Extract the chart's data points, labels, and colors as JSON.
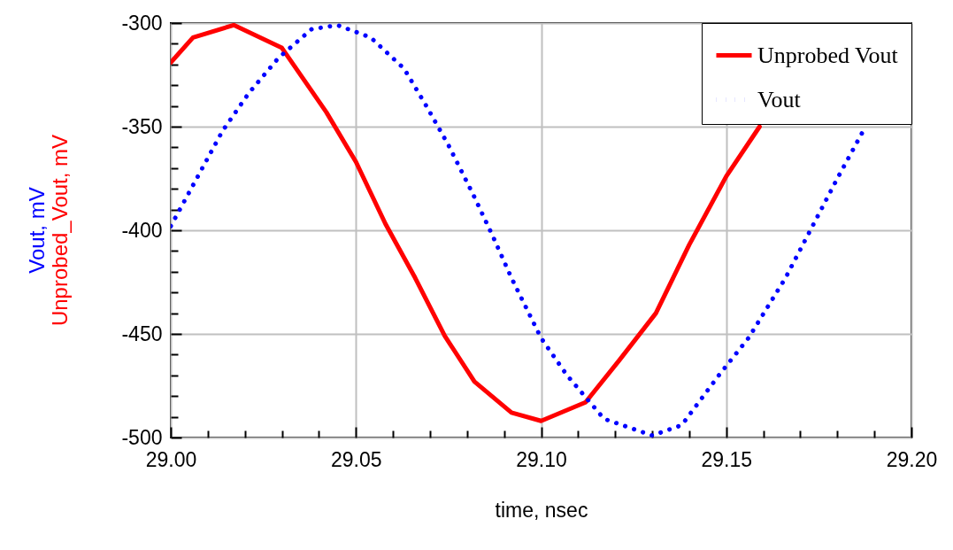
{
  "chart_data": {
    "type": "line",
    "xlabel": "time, nsec",
    "ylabel": "Vout, mV\nUnprobed_Vout, mV",
    "xlim": [
      29.0,
      29.2
    ],
    "ylim": [
      -500,
      -300
    ],
    "xticks": [
      {
        "value": 29.0,
        "label": "29.00"
      },
      {
        "value": 29.01,
        "label": null
      },
      {
        "value": 29.02,
        "label": null
      },
      {
        "value": 29.03,
        "label": null
      },
      {
        "value": 29.04,
        "label": null
      },
      {
        "value": 29.05,
        "label": "29.05"
      },
      {
        "value": 29.06,
        "label": null
      },
      {
        "value": 29.07,
        "label": null
      },
      {
        "value": 29.08,
        "label": null
      },
      {
        "value": 29.09,
        "label": null
      },
      {
        "value": 29.1,
        "label": "29.10"
      },
      {
        "value": 29.11,
        "label": null
      },
      {
        "value": 29.12,
        "label": null
      },
      {
        "value": 29.13,
        "label": null
      },
      {
        "value": 29.14,
        "label": null
      },
      {
        "value": 29.15,
        "label": "29.15"
      },
      {
        "value": 29.16,
        "label": null
      },
      {
        "value": 29.17,
        "label": null
      },
      {
        "value": 29.18,
        "label": null
      },
      {
        "value": 29.19,
        "label": null
      },
      {
        "value": 29.2,
        "label": "29.20"
      }
    ],
    "yticks": [
      -500,
      {
        "value": -490,
        "label": null
      },
      {
        "value": -480,
        "label": null
      },
      {
        "value": -470,
        "label": null
      },
      {
        "value": -460,
        "label": null
      },
      -450,
      {
        "value": -440,
        "label": null
      },
      {
        "value": -430,
        "label": null
      },
      {
        "value": -420,
        "label": null
      },
      {
        "value": -410,
        "label": null
      },
      -400,
      {
        "value": -390,
        "label": null
      },
      {
        "value": -380,
        "label": null
      },
      {
        "value": -370,
        "label": null
      },
      {
        "value": -360,
        "label": null
      },
      -350,
      {
        "value": -340,
        "label": null
      },
      {
        "value": -330,
        "label": null
      },
      {
        "value": -320,
        "label": null
      },
      {
        "value": -310,
        "label": null
      },
      -300
    ],
    "grid": true,
    "legend": "top right",
    "marker": "none",
    "series": [
      {
        "name": "Unprobed Vout",
        "color": "#ff0000",
        "line_style": "solid",
        "x": [
          29.0,
          29.006,
          29.017,
          29.03,
          29.042,
          29.05,
          29.058,
          29.066,
          29.074,
          29.082,
          29.092,
          29.1,
          29.112,
          29.121,
          29.131,
          29.14,
          29.15,
          29.159
        ],
        "values": [
          -319,
          -307,
          -301,
          -312,
          -343,
          -367,
          -397,
          -423,
          -451,
          -473,
          -488,
          -492,
          -483,
          -463,
          -440,
          -407,
          -374,
          -350
        ]
      },
      {
        "name": "Vout",
        "color": "#0000ff",
        "line_style": "dotted",
        "x": [
          29.0,
          29.007,
          29.014,
          29.021,
          29.029,
          29.038,
          29.045,
          29.054,
          29.063,
          29.069,
          29.075,
          29.082,
          29.087,
          29.092,
          29.1,
          29.107,
          29.117,
          29.13,
          29.138,
          29.148,
          29.156,
          29.166,
          29.173,
          29.18,
          29.187
        ],
        "values": [
          -398,
          -375,
          -352,
          -334,
          -317,
          -303,
          -301,
          -307,
          -322,
          -340,
          -359,
          -384,
          -403,
          -423,
          -452,
          -470,
          -491,
          -499,
          -494,
          -470,
          -452,
          -423,
          -399,
          -375,
          -352
        ]
      }
    ]
  }
}
